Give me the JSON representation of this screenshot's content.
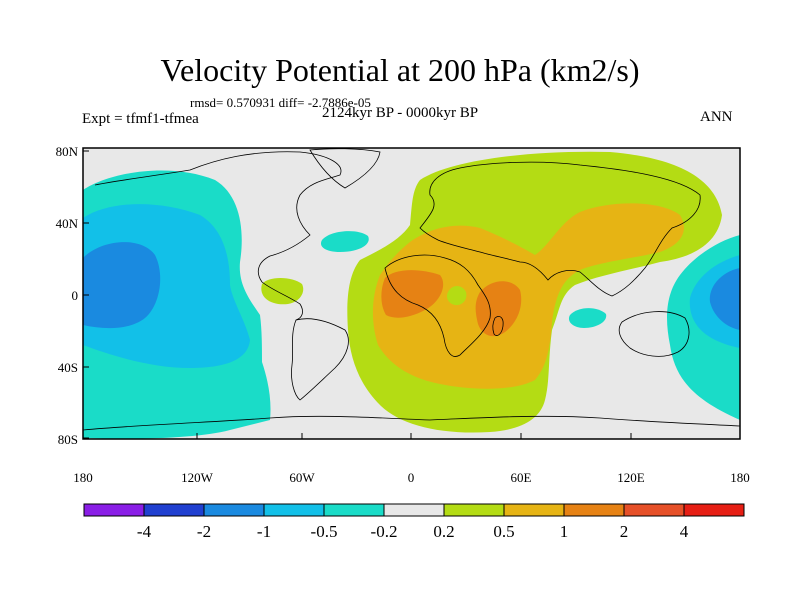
{
  "title": "Velocity Potential at 200 hPa (km2/s)",
  "stats": "rmsd= 0.570931  diff= -2.7886e-05",
  "experiment": "Expt = tfmf1-tfmea",
  "period": "2124kyr BP - 0000kyr BP",
  "season": "ANN",
  "axes": {
    "y_ticks": [
      "80N",
      "40N",
      "0",
      "40S",
      "80S"
    ],
    "x_ticks": [
      "180",
      "120W",
      "60W",
      "0",
      "60E",
      "120E",
      "180"
    ]
  },
  "colorbar": {
    "labels": [
      "-4",
      "-2",
      "-1",
      "-0.5",
      "-0.2",
      "0.2",
      "0.5",
      "1",
      "2",
      "4"
    ],
    "colors": [
      "#8a1ee6",
      "#2040d0",
      "#1a8ae0",
      "#12c0e8",
      "#1adcc8",
      "#e8e8e8",
      "#b4dc14",
      "#e6b414",
      "#e68214",
      "#e65028",
      "#e61e14"
    ]
  }
}
